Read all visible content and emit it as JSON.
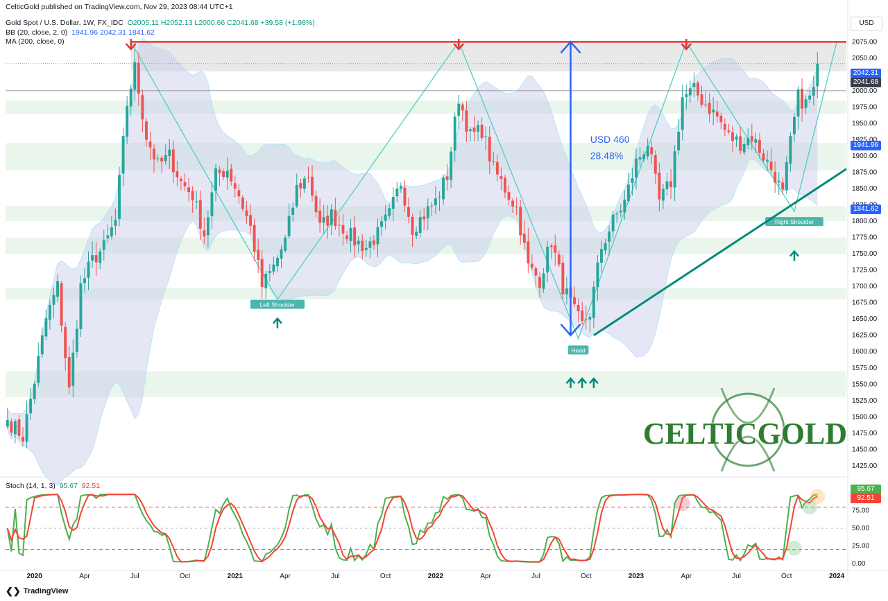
{
  "header": {
    "publisher": "CelticGold published on TradingView.com, Nov 29, 2023 08:44 UTC+1",
    "symbol": "Gold Spot / U.S. Dollar, 1W, FX_IDC",
    "ohlc": {
      "o": "O2005.11",
      "h": "H2052.13",
      "l": "L2000.66",
      "c": "C2041.68",
      "chg": "+39.58 (+1.98%)"
    },
    "bb_label": "BB (20, close, 2, 0)",
    "bb_values": [
      "1941.96",
      "2042.31",
      "1841.62"
    ],
    "ma_label": "MA (200, close, 0)",
    "stoch_label": "Stoch (14, 1, 3)",
    "stoch_k": "95.67",
    "stoch_d": "92.51"
  },
  "currency": "USD",
  "footer": {
    "brand": "TradingView"
  },
  "watermark": "CELTICGOLD",
  "price_tags": {
    "bb_upper": "2042.31",
    "close": "2041.68",
    "bb_mid": "1941.96",
    "bb_lower": "1841.62",
    "stoch_k": "95.67",
    "stoch_d": "92.51"
  },
  "colors": {
    "up": "#26a69a",
    "down": "#ef5350",
    "bb": "#2962ff",
    "resistance": "#e53935",
    "trend": "#00897b",
    "zone": "#e8f5e9",
    "pattern": "#4dd0c4",
    "stoch_k": "#4caf50",
    "stoch_d": "#f44336"
  },
  "chart_data": {
    "type": "candlestick",
    "timeframe": "1W",
    "ylim": [
      1410,
      2120
    ],
    "y_ticks": [
      1425,
      1450,
      1475,
      1500,
      1525,
      1550,
      1575,
      1600,
      1625,
      1650,
      1675,
      1700,
      1725,
      1750,
      1775,
      1800,
      1825,
      1850,
      1875,
      1900,
      1925,
      1950,
      1975,
      2000,
      2025,
      2050,
      2075,
      2100
    ],
    "x_ticks": [
      {
        "label": "2020",
        "bold": true,
        "week": 7
      },
      {
        "label": "Apr",
        "week": 20
      },
      {
        "label": "Jul",
        "week": 33
      },
      {
        "label": "Oct",
        "week": 46
      },
      {
        "label": "2021",
        "bold": true,
        "week": 59
      },
      {
        "label": "Apr",
        "week": 72
      },
      {
        "label": "Jul",
        "week": 85
      },
      {
        "label": "Oct",
        "week": 98
      },
      {
        "label": "2022",
        "bold": true,
        "week": 111
      },
      {
        "label": "Apr",
        "week": 124
      },
      {
        "label": "Jul",
        "week": 137
      },
      {
        "label": "Oct",
        "week": 150
      },
      {
        "label": "2023",
        "bold": true,
        "week": 163
      },
      {
        "label": "Apr",
        "week": 176
      },
      {
        "label": "Jul",
        "week": 189
      },
      {
        "label": "Oct",
        "week": 202
      },
      {
        "label": "2024",
        "bold": true,
        "week": 215
      }
    ],
    "close_path": [
      [
        0,
        1495
      ],
      [
        4,
        1470
      ],
      [
        7,
        1555
      ],
      [
        10,
        1650
      ],
      [
        13,
        1700
      ],
      [
        16,
        1540
      ],
      [
        19,
        1700
      ],
      [
        22,
        1740
      ],
      [
        25,
        1760
      ],
      [
        28,
        1800
      ],
      [
        31,
        1980
      ],
      [
        33,
        2035
      ],
      [
        36,
        1930
      ],
      [
        39,
        1885
      ],
      [
        42,
        1900
      ],
      [
        45,
        1860
      ],
      [
        48,
        1840
      ],
      [
        51,
        1780
      ],
      [
        54,
        1870
      ],
      [
        57,
        1880
      ],
      [
        60,
        1840
      ],
      [
        63,
        1790
      ],
      [
        66,
        1700
      ],
      [
        69,
        1730
      ],
      [
        72,
        1770
      ],
      [
        75,
        1850
      ],
      [
        78,
        1870
      ],
      [
        81,
        1790
      ],
      [
        84,
        1810
      ],
      [
        87,
        1790
      ],
      [
        90,
        1770
      ],
      [
        93,
        1760
      ],
      [
        96,
        1780
      ],
      [
        99,
        1810
      ],
      [
        102,
        1860
      ],
      [
        105,
        1790
      ],
      [
        108,
        1810
      ],
      [
        111,
        1830
      ],
      [
        114,
        1870
      ],
      [
        117,
        1990
      ],
      [
        120,
        1930
      ],
      [
        123,
        1940
      ],
      [
        126,
        1880
      ],
      [
        129,
        1850
      ],
      [
        132,
        1820
      ],
      [
        135,
        1730
      ],
      [
        138,
        1710
      ],
      [
        141,
        1770
      ],
      [
        144,
        1700
      ],
      [
        147,
        1660
      ],
      [
        149,
        1640
      ],
      [
        151,
        1660
      ],
      [
        154,
        1760
      ],
      [
        157,
        1800
      ],
      [
        160,
        1830
      ],
      [
        163,
        1890
      ],
      [
        166,
        1920
      ],
      [
        169,
        1830
      ],
      [
        172,
        1860
      ],
      [
        175,
        1990
      ],
      [
        178,
        2000
      ],
      [
        181,
        1980
      ],
      [
        184,
        1960
      ],
      [
        187,
        1930
      ],
      [
        190,
        1920
      ],
      [
        193,
        1930
      ],
      [
        196,
        1900
      ],
      [
        199,
        1870
      ],
      [
        201,
        1840
      ],
      [
        203,
        1920
      ],
      [
        205,
        1990
      ],
      [
        207,
        1980
      ],
      [
        209,
        2000
      ],
      [
        210,
        2041.68
      ]
    ],
    "resistance_level": 2075,
    "resistance_start_week": 32,
    "annotations": [
      {
        "label": "USD 460",
        "week": 150,
        "price": 1920
      },
      {
        "label": "28.48%",
        "week": 150,
        "price": 1895
      }
    ],
    "pattern_labels": [
      {
        "label": "Left Shoulder",
        "week": 70,
        "price": 1673
      },
      {
        "label": "Head",
        "week": 148,
        "price": 1603
      },
      {
        "label": "Right Shoulder",
        "week": 204,
        "price": 1800
      }
    ],
    "stoch_ticks": [
      0,
      25,
      50,
      75,
      100
    ]
  }
}
